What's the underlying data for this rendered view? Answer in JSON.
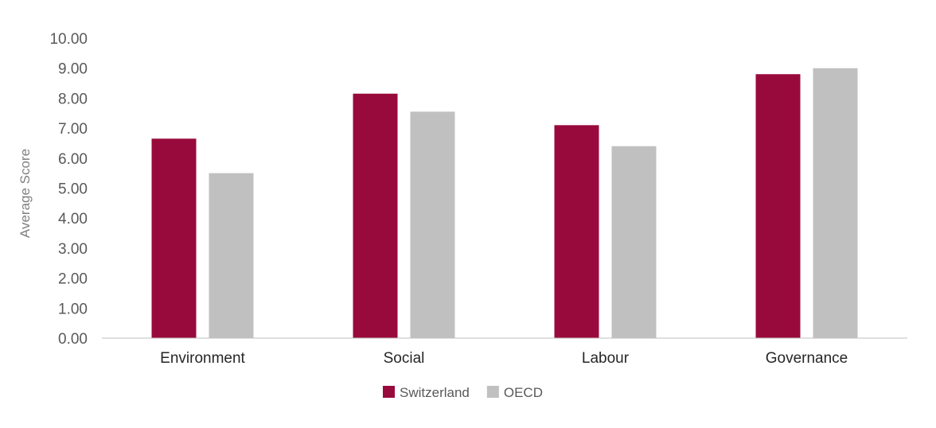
{
  "chart_data": {
    "type": "bar",
    "ylabel": "Average Score",
    "ylim": [
      0,
      10
    ],
    "yticks": [
      "0.00",
      "1.00",
      "2.00",
      "3.00",
      "4.00",
      "5.00",
      "6.00",
      "7.00",
      "8.00",
      "9.00",
      "10.00"
    ],
    "categories": [
      "Environment",
      "Social",
      "Labour",
      "Governance"
    ],
    "series": [
      {
        "name": "Switzerland",
        "color": "#990a3c",
        "values": [
          6.65,
          8.15,
          7.1,
          8.8
        ]
      },
      {
        "name": "OECD",
        "color": "#c0c0c0",
        "values": [
          5.5,
          7.55,
          6.4,
          9.0
        ]
      }
    ],
    "legend": "bottom",
    "grid": false
  }
}
